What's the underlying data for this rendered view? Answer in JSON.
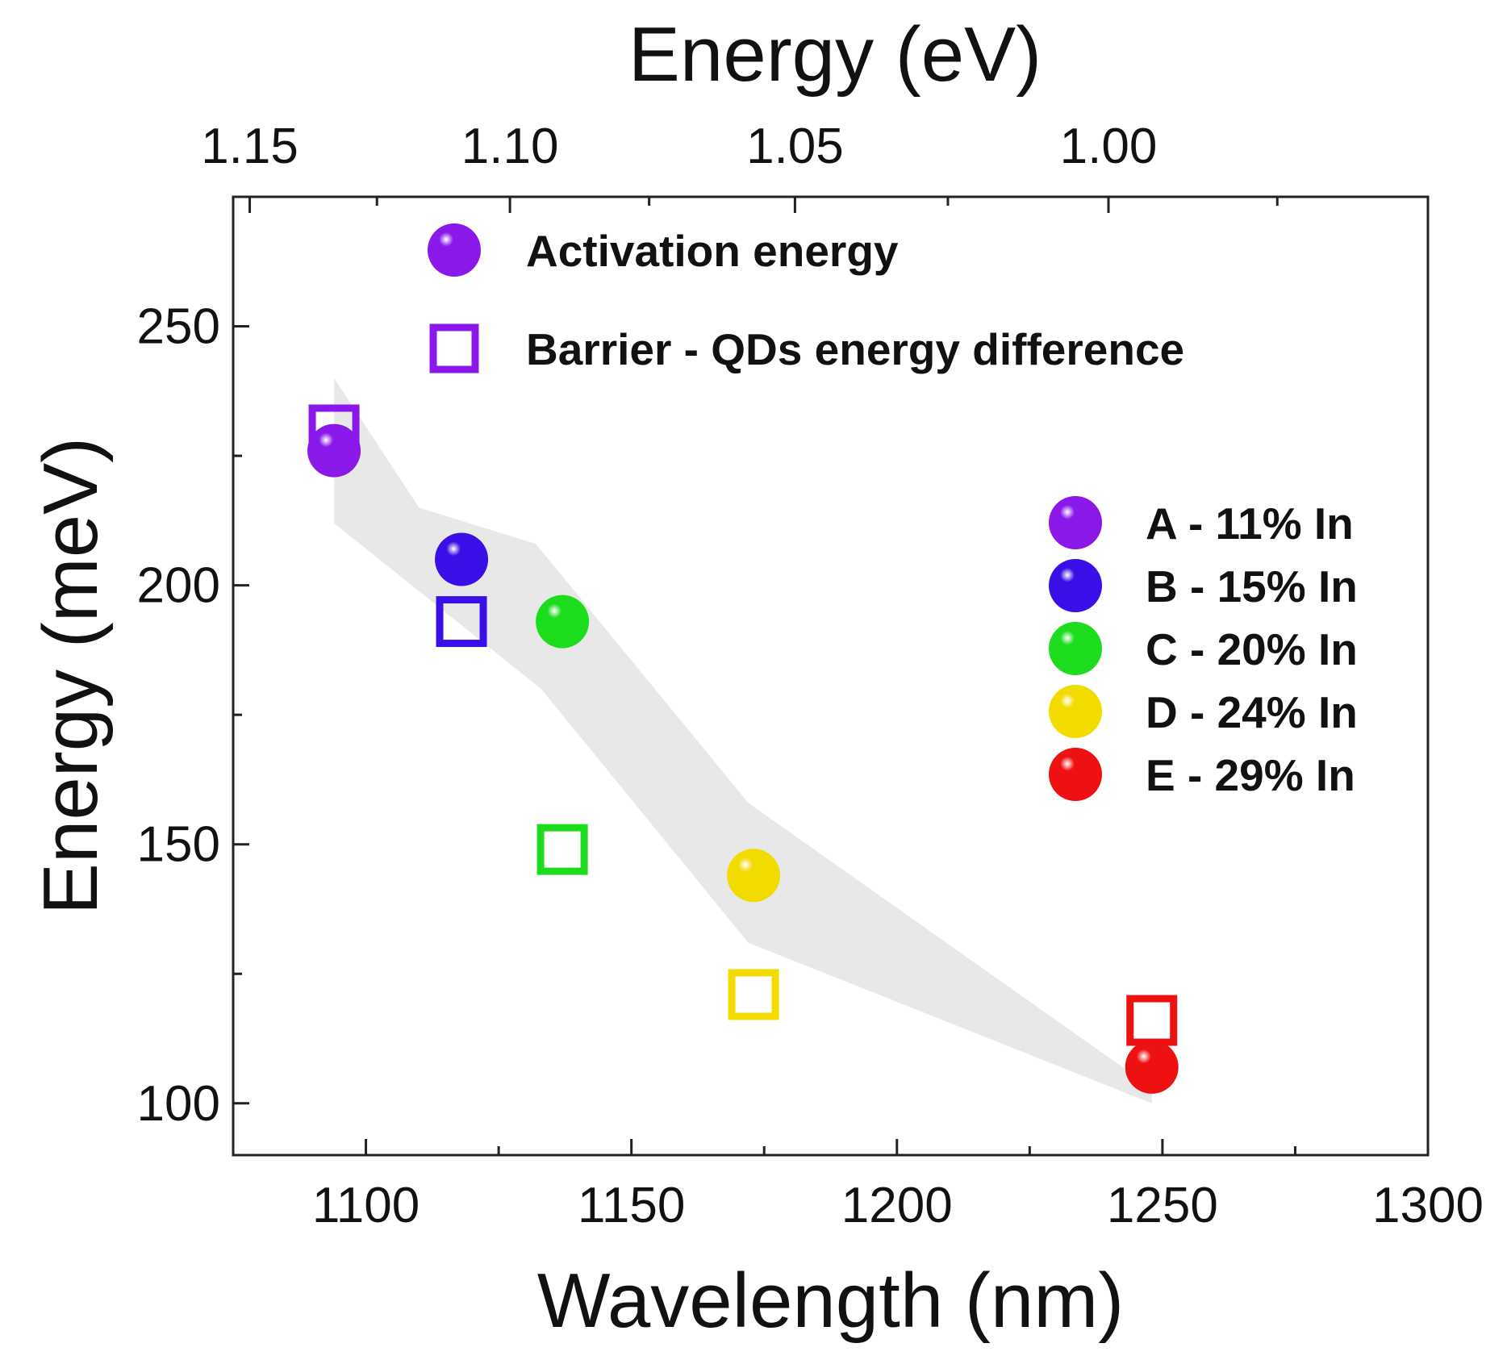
{
  "chart_data": {
    "type": "scatter",
    "title": "",
    "xlabel": "Wavelength (nm)",
    "ylabel": "Energy (meV)",
    "top_xlabel": "Energy (eV)",
    "xlim": [
      1075,
      1300
    ],
    "ylim": [
      90,
      275
    ],
    "grid": false,
    "x_ticks": [
      1100,
      1150,
      1200,
      1250,
      1300
    ],
    "x_tick_labels": [
      "1100",
      "1150",
      "1200",
      "1250",
      "1300"
    ],
    "y_ticks": [
      100,
      150,
      200,
      250
    ],
    "y_tick_labels": [
      "100",
      "150",
      "200",
      "250"
    ],
    "top_ticks": [
      1.15,
      1.1,
      1.05,
      1.0
    ],
    "top_tick_labels": [
      "1.15",
      "1.10",
      "1.05",
      "1.00"
    ],
    "top_axis_relation": "E(eV) = 1239.84 / wavelength(nm)",
    "series": [
      {
        "name": "Activation energy",
        "marker": "sphere",
        "points": [
          {
            "x": 1094,
            "y": 226,
            "sample": "A"
          },
          {
            "x": 1118,
            "y": 205,
            "sample": "B"
          },
          {
            "x": 1137,
            "y": 193,
            "sample": "C"
          },
          {
            "x": 1173,
            "y": 144,
            "sample": "D"
          },
          {
            "x": 1248,
            "y": 107,
            "sample": "E"
          }
        ]
      },
      {
        "name": "Barrier - QDs energy difference",
        "marker": "open-square",
        "points": [
          {
            "x": 1094,
            "y": 230,
            "sample": "A"
          },
          {
            "x": 1118,
            "y": 193,
            "sample": "B"
          },
          {
            "x": 1137,
            "y": 149,
            "sample": "C"
          },
          {
            "x": 1173,
            "y": 121,
            "sample": "D"
          },
          {
            "x": 1248,
            "y": 116,
            "sample": "E"
          }
        ]
      }
    ],
    "band": {
      "description": "shaded guide band",
      "color": "#e8e8e8",
      "points": [
        [
          1094,
          240
        ],
        [
          1110,
          215
        ],
        [
          1132,
          208
        ],
        [
          1172,
          158
        ],
        [
          1248,
          103
        ],
        [
          1248,
          100
        ],
        [
          1172,
          131
        ],
        [
          1133,
          180
        ],
        [
          1094,
          212
        ]
      ]
    },
    "samples": [
      {
        "id": "A",
        "label": "A - 11% In",
        "color": "#8a18e8"
      },
      {
        "id": "B",
        "label": "B - 15% In",
        "color": "#3a0ee6"
      },
      {
        "id": "C",
        "label": "C - 20% In",
        "color": "#1ddc1d"
      },
      {
        "id": "D",
        "label": "D - 24% In",
        "color": "#f2dc00"
      },
      {
        "id": "E",
        "label": "E - 29% In",
        "color": "#ee1111"
      }
    ],
    "legend_series": [
      {
        "label": "Activation energy",
        "marker": "sphere",
        "color": "#8a18e8"
      },
      {
        "label": "Barrier - QDs energy difference",
        "marker": "open-square",
        "color": "#8a18e8"
      }
    ],
    "legend_position": "top-left (series) and right (samples)"
  }
}
